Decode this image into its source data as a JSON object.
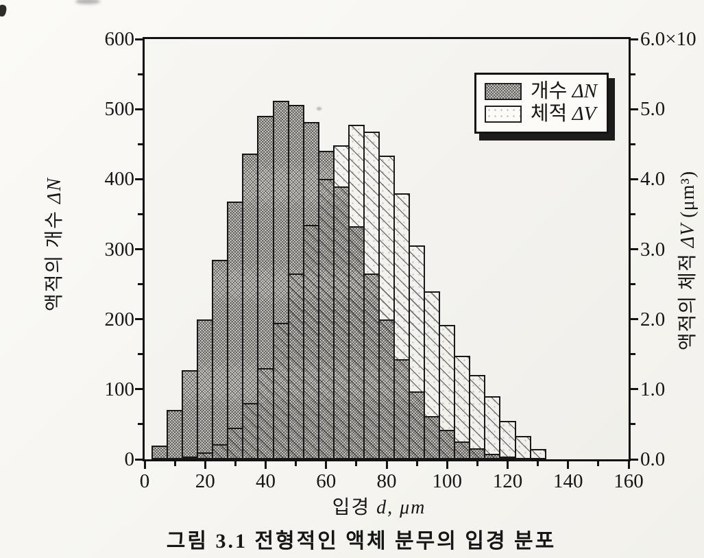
{
  "figure": {
    "caption": "그림 3.1  전형적인 액체 분무의 입경 분포"
  },
  "chart_data": {
    "type": "bar",
    "style": "overlaid-histograms",
    "title": "",
    "bin_width_um": 5,
    "categories": [
      5,
      10,
      15,
      20,
      25,
      30,
      35,
      40,
      45,
      50,
      55,
      60,
      65,
      70,
      75,
      80,
      85,
      90,
      95,
      100,
      105,
      110,
      115,
      120,
      125,
      130
    ],
    "series": [
      {
        "name": "개수 ΔN",
        "axis": "left",
        "pattern": "dense-crosshatch",
        "values": [
          20,
          70,
          127,
          200,
          285,
          368,
          437,
          490,
          512,
          506,
          482,
          440,
          390,
          333,
          265,
          200,
          143,
          97,
          62,
          42,
          25,
          16,
          8,
          4,
          2,
          0
        ]
      },
      {
        "name": "체적 ΔV",
        "axis": "right",
        "pattern": "sparse-diagonal-dotted",
        "values": [
          0,
          0,
          0.04,
          0.1,
          0.22,
          0.45,
          0.8,
          1.3,
          1.95,
          2.65,
          3.35,
          4.0,
          4.48,
          4.78,
          4.68,
          4.34,
          3.8,
          3.05,
          2.4,
          1.92,
          1.48,
          1.2,
          0.9,
          0.55,
          0.33,
          0.15
        ]
      }
    ],
    "legend": {
      "position": "top-right",
      "items": [
        {
          "label_korean": "개수",
          "symbol": "ΔN"
        },
        {
          "label_korean": "체적",
          "symbol": "ΔV"
        }
      ]
    },
    "x_axis": {
      "label_korean": "입경",
      "symbol": "d,",
      "unit": "μm",
      "min": 0,
      "max": 160,
      "major_step": 20,
      "minor_step": 10,
      "tick_labels": [
        "0",
        "20",
        "40",
        "60",
        "80",
        "100",
        "120",
        "140",
        "160"
      ]
    },
    "y_left_axis": {
      "label_korean": "액적의 개수",
      "symbol": "ΔN",
      "min": 0,
      "max": 600,
      "major_step": 100,
      "minor_step": 50,
      "tick_labels": [
        "0",
        "100",
        "200",
        "300",
        "400",
        "500",
        "600"
      ]
    },
    "y_right_axis": {
      "label_korean": "액적의 체적",
      "symbol": "ΔV",
      "unit": "(μm³)",
      "min": 0,
      "max": 6,
      "major_step": 1,
      "minor_step": 0.5,
      "tick_labels": [
        "0.0",
        "1.0",
        "2.0",
        "3.0",
        "4.0",
        "5.0",
        "6.0×10"
      ]
    },
    "grid": false
  }
}
